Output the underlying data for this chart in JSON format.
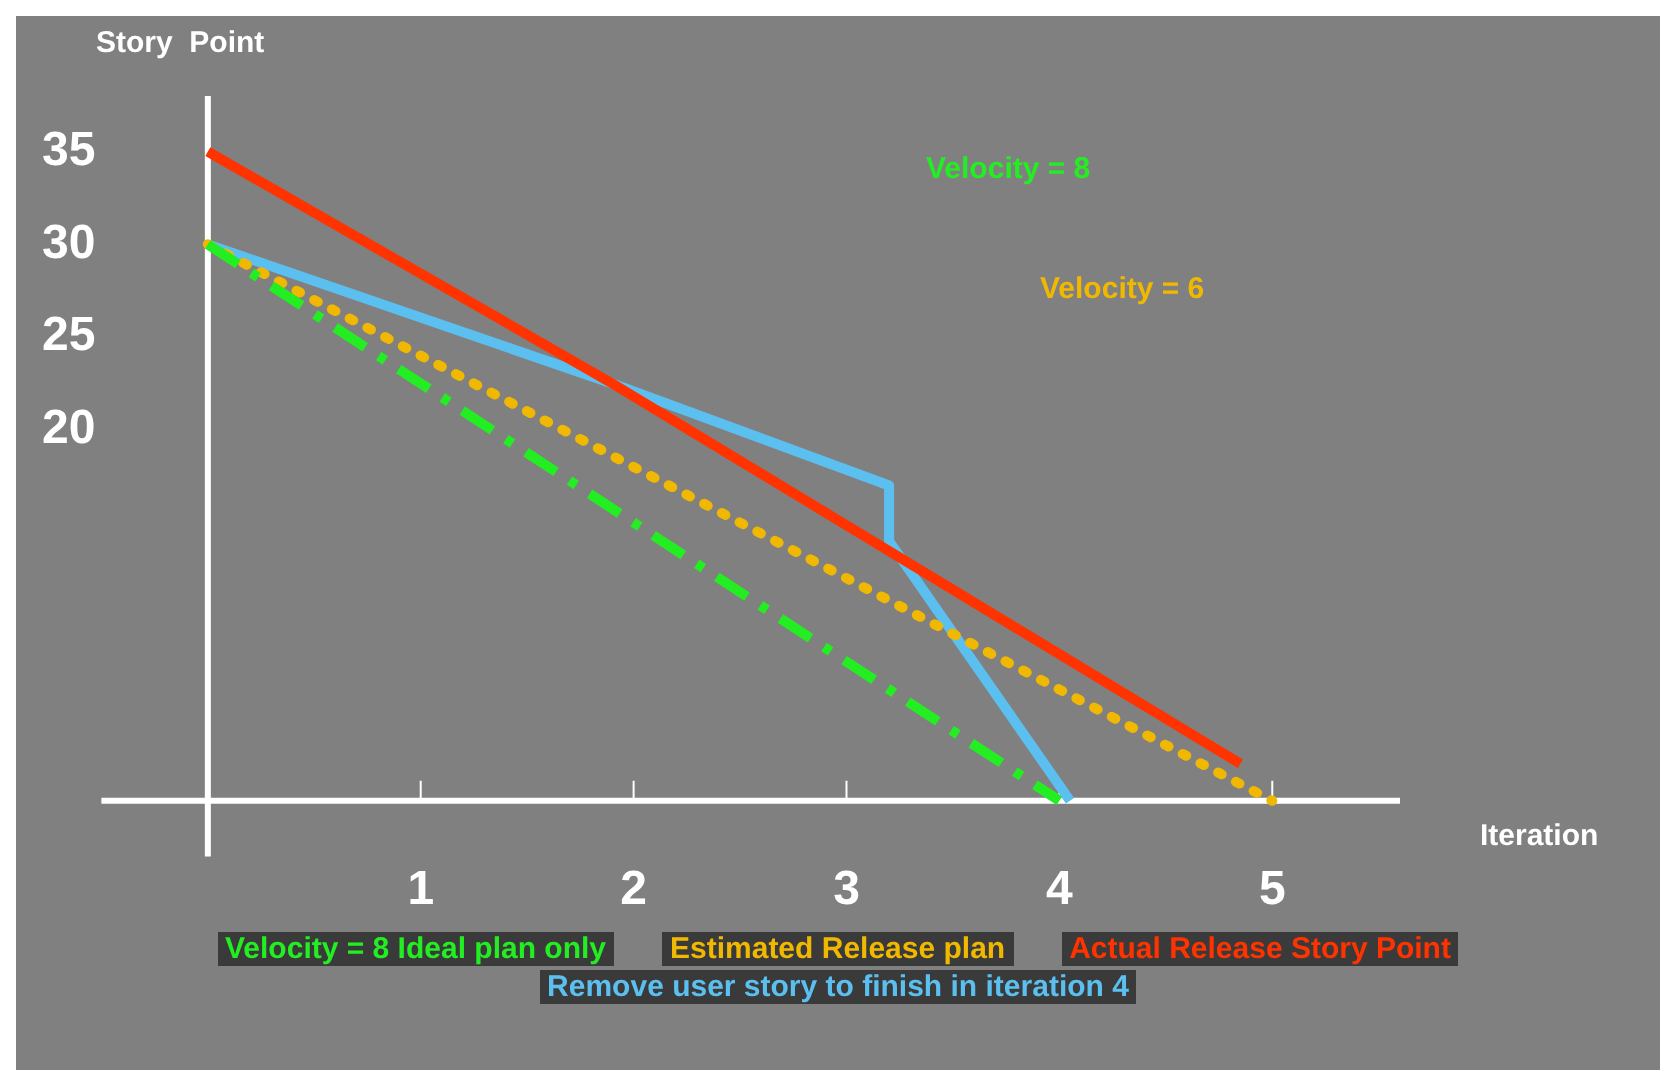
{
  "chart_data": {
    "type": "line",
    "xlabel": "Iteration",
    "ylabel": "Story  Point",
    "xlim": [
      -0.5,
      5.6
    ],
    "xticks": [
      1,
      2,
      3,
      4,
      5
    ],
    "ylim": [
      -3,
      38
    ],
    "yticks": [
      20,
      25,
      30,
      35
    ],
    "grid": false,
    "legend": "bottom",
    "marker": "none",
    "series": [
      {
        "name": "Velocity = 8 Ideal plan only",
        "color": "#22ee22",
        "line_style": "dashed",
        "x": [
          0,
          4
        ],
        "values": [
          30,
          0
        ]
      },
      {
        "name": "Estimated  Release  plan",
        "color": "#f0b800",
        "line_style": "dotted",
        "x": [
          0,
          5
        ],
        "values": [
          30,
          0
        ]
      },
      {
        "name": "Actual Release Story Point",
        "color": "#ff3300",
        "line_style": "solid",
        "x": [
          0,
          1.9,
          4.85
        ],
        "values": [
          35,
          22.5,
          2
        ]
      },
      {
        "name": "Remove user story to finish in iteration  4",
        "color": "#5bc0f0",
        "line_style": "solid",
        "x": [
          0,
          1.9,
          3.2,
          3.2,
          4.05
        ],
        "values": [
          30,
          22.5,
          17,
          14,
          0
        ]
      }
    ],
    "annotations": [
      "Velocity  =  8",
      "Velocity  =  6"
    ]
  }
}
